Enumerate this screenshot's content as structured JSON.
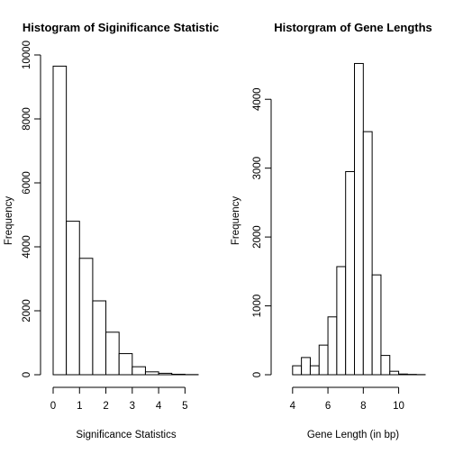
{
  "chart_data": [
    {
      "type": "bar",
      "title": "Histogram of Siginificance Statistic",
      "xlabel": "Significance Statistics",
      "ylabel": "Frequency",
      "xlim": [
        0,
        5.5
      ],
      "ylim": [
        0,
        10000
      ],
      "x_ticks": [
        0,
        1,
        2,
        3,
        4,
        5
      ],
      "y_ticks": [
        0,
        2000,
        4000,
        6000,
        8000,
        10000
      ],
      "bins": [
        {
          "x0": 0.0,
          "x1": 0.5,
          "value": 9650
        },
        {
          "x0": 0.5,
          "x1": 1.0,
          "value": 4800
        },
        {
          "x0": 1.0,
          "x1": 1.5,
          "value": 3640
        },
        {
          "x0": 1.5,
          "x1": 2.0,
          "value": 2310
        },
        {
          "x0": 2.0,
          "x1": 2.5,
          "value": 1330
        },
        {
          "x0": 2.5,
          "x1": 3.0,
          "value": 660
        },
        {
          "x0": 3.0,
          "x1": 3.5,
          "value": 250
        },
        {
          "x0": 3.5,
          "x1": 4.0,
          "value": 90
        },
        {
          "x0": 4.0,
          "x1": 4.5,
          "value": 45
        },
        {
          "x0": 4.5,
          "x1": 5.0,
          "value": 15
        },
        {
          "x0": 5.0,
          "x1": 5.5,
          "value": 5
        }
      ],
      "grid": false
    },
    {
      "type": "bar",
      "title": "Historgram of Gene Lengths",
      "xlabel": "Gene Length (in bp)",
      "ylabel": "Frequency",
      "xlim": [
        3.5,
        11.5
      ],
      "ylim": [
        0,
        4500
      ],
      "x_ticks": [
        4,
        6,
        8,
        10
      ],
      "y_ticks": [
        0,
        1000,
        2000,
        3000,
        4000
      ],
      "bins": [
        {
          "x0": 4.0,
          "x1": 4.5,
          "value": 130
        },
        {
          "x0": 4.5,
          "x1": 5.0,
          "value": 250
        },
        {
          "x0": 5.0,
          "x1": 5.5,
          "value": 130
        },
        {
          "x0": 5.5,
          "x1": 6.0,
          "value": 430
        },
        {
          "x0": 6.0,
          "x1": 6.5,
          "value": 840
        },
        {
          "x0": 6.5,
          "x1": 7.0,
          "value": 1570
        },
        {
          "x0": 7.0,
          "x1": 7.5,
          "value": 2950
        },
        {
          "x0": 7.5,
          "x1": 8.0,
          "value": 4520
        },
        {
          "x0": 8.0,
          "x1": 8.5,
          "value": 3530
        },
        {
          "x0": 8.5,
          "x1": 9.0,
          "value": 1450
        },
        {
          "x0": 9.0,
          "x1": 9.5,
          "value": 280
        },
        {
          "x0": 9.5,
          "x1": 10.0,
          "value": 50
        },
        {
          "x0": 10.0,
          "x1": 10.5,
          "value": 10
        },
        {
          "x0": 10.5,
          "x1": 11.0,
          "value": 5
        },
        {
          "x0": 11.0,
          "x1": 11.5,
          "value": 2
        }
      ],
      "grid": false
    }
  ]
}
